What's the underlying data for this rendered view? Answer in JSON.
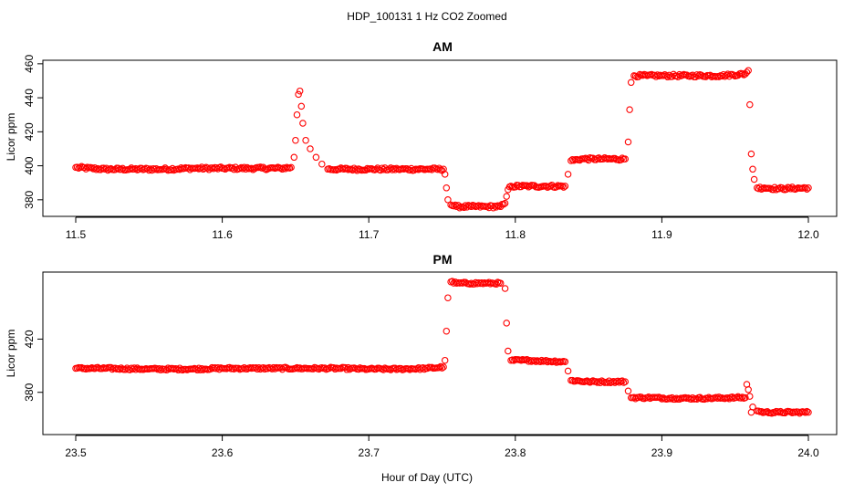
{
  "figure_title": "HDP_100131  1 Hz CO2 Zoomed",
  "xlabel": "Hour of Day (UTC)",
  "point_color": "#ff0000",
  "chart_data": [
    {
      "type": "scatter",
      "title": "AM",
      "xlabel": "",
      "ylabel": "Licor ppm",
      "xlim": [
        11.5,
        12.0
      ],
      "ylim": [
        374,
        461
      ],
      "x_ticks": [
        11.5,
        11.6,
        11.7,
        11.8,
        11.9,
        12.0
      ],
      "x_tick_labels": [
        "11.5",
        "11.6",
        "11.7",
        "11.8",
        "11.9",
        "12.0"
      ],
      "y_ticks": [
        380,
        400,
        420,
        440,
        460
      ],
      "y_tick_labels": [
        "380",
        "400",
        "420",
        "440",
        "460"
      ],
      "marker": "open circle",
      "series": [
        {
          "points": [
            [
              11.5,
              399
            ],
            [
              11.52,
              398
            ],
            [
              11.54,
              398
            ],
            [
              11.56,
              398
            ],
            [
              11.58,
              398.5
            ],
            [
              11.6,
              398.5
            ],
            [
              11.62,
              398.5
            ],
            [
              11.64,
              398.5
            ],
            [
              11.647,
              399
            ],
            [
              11.649,
              405
            ],
            [
              11.65,
              415
            ],
            [
              11.651,
              430
            ],
            [
              11.652,
              442
            ],
            [
              11.653,
              444
            ],
            [
              11.654,
              435
            ],
            [
              11.655,
              425
            ],
            [
              11.657,
              415
            ],
            [
              11.66,
              410
            ],
            [
              11.664,
              405
            ],
            [
              11.668,
              401
            ],
            [
              11.672,
              398
            ],
            [
              11.68,
              398
            ],
            [
              11.7,
              398
            ],
            [
              11.72,
              398
            ],
            [
              11.74,
              398
            ],
            [
              11.751,
              398
            ],
            [
              11.752,
              395
            ],
            [
              11.753,
              387
            ],
            [
              11.754,
              380
            ],
            [
              11.756,
              377
            ],
            [
              11.76,
              376
            ],
            [
              11.77,
              376
            ],
            [
              11.78,
              376
            ],
            [
              11.79,
              376
            ],
            [
              11.793,
              378
            ],
            [
              11.794,
              382
            ],
            [
              11.795,
              386
            ],
            [
              11.797,
              388
            ],
            [
              11.81,
              388
            ],
            [
              11.82,
              388
            ],
            [
              11.834,
              388
            ],
            [
              11.836,
              395
            ],
            [
              11.838,
              403
            ],
            [
              11.845,
              404
            ],
            [
              11.86,
              404
            ],
            [
              11.875,
              404
            ],
            [
              11.877,
              414
            ],
            [
              11.878,
              433
            ],
            [
              11.879,
              449
            ],
            [
              11.881,
              453
            ],
            [
              11.89,
              453
            ],
            [
              11.9,
              453
            ],
            [
              11.92,
              453
            ],
            [
              11.94,
              453
            ],
            [
              11.957,
              454
            ],
            [
              11.959,
              456
            ],
            [
              11.96,
              436
            ],
            [
              11.961,
              407
            ],
            [
              11.962,
              398
            ],
            [
              11.963,
              392
            ],
            [
              11.965,
              387
            ],
            [
              11.97,
              387
            ],
            [
              11.98,
              386.5
            ],
            [
              12.0,
              387
            ]
          ]
        }
      ]
    },
    {
      "type": "scatter",
      "title": "PM",
      "xlabel": "Hour of Day (UTC)",
      "ylabel": "Licor ppm",
      "xlim": [
        23.5,
        24.0
      ],
      "ylim": [
        351,
        469
      ],
      "x_ticks": [
        23.5,
        23.6,
        23.7,
        23.8,
        23.9,
        24.0
      ],
      "x_tick_labels": [
        "23.5",
        "23.6",
        "23.7",
        "23.8",
        "23.9",
        "24.0"
      ],
      "y_ticks": [
        380,
        420
      ],
      "y_tick_labels": [
        "380",
        "420"
      ],
      "marker": "open circle",
      "series": [
        {
          "points": [
            [
              23.5,
              398
            ],
            [
              23.52,
              398
            ],
            [
              23.55,
              397.5
            ],
            [
              23.58,
              397.5
            ],
            [
              23.6,
              398
            ],
            [
              23.62,
              398
            ],
            [
              23.65,
              398
            ],
            [
              23.68,
              398
            ],
            [
              23.7,
              397.5
            ],
            [
              23.72,
              397.5
            ],
            [
              23.74,
              398
            ],
            [
              23.751,
              399
            ],
            [
              23.752,
              404
            ],
            [
              23.753,
              426
            ],
            [
              23.754,
              451
            ],
            [
              23.756,
              463
            ],
            [
              23.76,
              462
            ],
            [
              23.77,
              462
            ],
            [
              23.78,
              462
            ],
            [
              23.79,
              462
            ],
            [
              23.793,
              458
            ],
            [
              23.794,
              432
            ],
            [
              23.795,
              411
            ],
            [
              23.797,
              404
            ],
            [
              23.81,
              404
            ],
            [
              23.82,
              403.5
            ],
            [
              23.834,
              403
            ],
            [
              23.836,
              396
            ],
            [
              23.838,
              389
            ],
            [
              23.85,
              388
            ],
            [
              23.86,
              388
            ],
            [
              23.875,
              388
            ],
            [
              23.877,
              381
            ],
            [
              23.879,
              376
            ],
            [
              23.89,
              376
            ],
            [
              23.91,
              375.5
            ],
            [
              23.93,
              375.5
            ],
            [
              23.95,
              376
            ],
            [
              23.957,
              376
            ],
            [
              23.958,
              386
            ],
            [
              23.959,
              382
            ],
            [
              23.96,
              377
            ],
            [
              23.961,
              365
            ],
            [
              23.962,
              369
            ],
            [
              23.965,
              366
            ],
            [
              23.97,
              365
            ],
            [
              23.98,
              365
            ],
            [
              24.0,
              365
            ]
          ]
        }
      ]
    }
  ]
}
